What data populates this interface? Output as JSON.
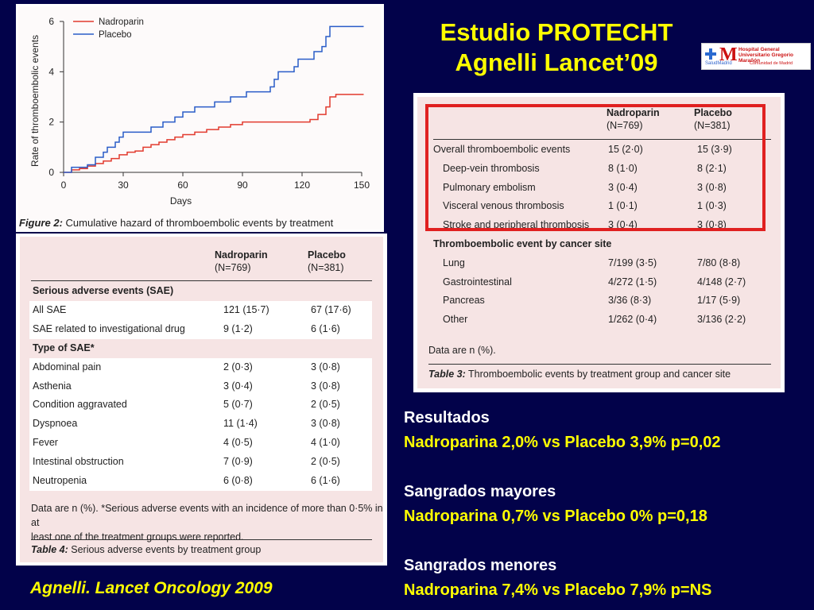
{
  "title": {
    "line1": "Estudio PROTECHT",
    "line2": "Agnelli Lancet’09"
  },
  "logo": {
    "letter": "M",
    "text_hospital": "Hospital General Universitario Gregorio Marañón",
    "text_salud": "SaludMadrid",
    "text_comunidad": "Comunidad de Madrid"
  },
  "chart_data": {
    "type": "line",
    "xlabel": "Days",
    "ylabel": "Rate of thromboembolic events",
    "xlim": [
      0,
      150
    ],
    "ylim": [
      0,
      6
    ],
    "xticks": [
      "0",
      "30",
      "60",
      "90",
      "120",
      "150"
    ],
    "yticks": [
      "0",
      "2",
      "4",
      "6"
    ],
    "legend_position": "top-left",
    "caption_bold": "Figure 2:",
    "caption_rest": " Cumulative hazard of thromboembolic events by treatment",
    "series": [
      {
        "name": "Nadroparin",
        "color": "#e23a2e",
        "points": [
          [
            0,
            0
          ],
          [
            4,
            0.1
          ],
          [
            8,
            0.15
          ],
          [
            12,
            0.25
          ],
          [
            16,
            0.35
          ],
          [
            20,
            0.45
          ],
          [
            24,
            0.55
          ],
          [
            28,
            0.7
          ],
          [
            32,
            0.8
          ],
          [
            36,
            0.85
          ],
          [
            40,
            1.0
          ],
          [
            44,
            1.1
          ],
          [
            48,
            1.2
          ],
          [
            52,
            1.3
          ],
          [
            56,
            1.4
          ],
          [
            60,
            1.5
          ],
          [
            66,
            1.6
          ],
          [
            72,
            1.7
          ],
          [
            78,
            1.8
          ],
          [
            84,
            1.9
          ],
          [
            90,
            2.0
          ],
          [
            120,
            2.0
          ],
          [
            124,
            2.1
          ],
          [
            128,
            2.3
          ],
          [
            132,
            2.6
          ],
          [
            134,
            3.0
          ],
          [
            137,
            3.1
          ],
          [
            151,
            3.1
          ]
        ]
      },
      {
        "name": "Placebo",
        "color": "#2a5cc8",
        "points": [
          [
            0,
            0
          ],
          [
            4,
            0.2
          ],
          [
            12,
            0.3
          ],
          [
            16,
            0.6
          ],
          [
            20,
            0.8
          ],
          [
            22,
            1.0
          ],
          [
            26,
            1.2
          ],
          [
            28,
            1.4
          ],
          [
            30,
            1.6
          ],
          [
            40,
            1.6
          ],
          [
            44,
            1.8
          ],
          [
            50,
            2.0
          ],
          [
            56,
            2.2
          ],
          [
            60,
            2.4
          ],
          [
            66,
            2.6
          ],
          [
            76,
            2.8
          ],
          [
            84,
            3.0
          ],
          [
            92,
            3.2
          ],
          [
            104,
            3.4
          ],
          [
            106,
            3.7
          ],
          [
            108,
            4.0
          ],
          [
            116,
            4.2
          ],
          [
            118,
            4.5
          ],
          [
            126,
            4.8
          ],
          [
            130,
            5.0
          ],
          [
            132,
            5.4
          ],
          [
            134,
            5.8
          ],
          [
            151,
            5.8
          ]
        ]
      }
    ]
  },
  "table3": {
    "col1": "Nadroparin",
    "col1n": "(N=769)",
    "col2": "Placebo",
    "col2n": "(N=381)",
    "rows": [
      {
        "label": "Overall thromboembolic events",
        "a": "15 (2·0)",
        "b": "15 (3·9)"
      },
      {
        "label": "Deep-vein thrombosis",
        "a": "8 (1·0)",
        "b": "8 (2·1)"
      },
      {
        "label": "Pulmonary embolism",
        "a": "3 (0·4)",
        "b": "3 (0·8)"
      },
      {
        "label": "Visceral venous thrombosis",
        "a": "1 (0·1)",
        "b": "1 (0·3)"
      },
      {
        "label": "Stroke and peripheral thrombosis",
        "a": "3 (0·4)",
        "b": "3 (0·8)"
      },
      {
        "label": "Thromboembolic event by cancer site",
        "a": "",
        "b": ""
      },
      {
        "label": "Lung",
        "a": "7/199 (3·5)",
        "b": "7/80 (8·8)"
      },
      {
        "label": "Gastrointestinal",
        "a": "4/272 (1·5)",
        "b": "4/148 (2·7)"
      },
      {
        "label": "Pancreas",
        "a": "3/36 (8·3)",
        "b": "1/17 (5·9)"
      },
      {
        "label": "Other",
        "a": "1/262 (0·4)",
        "b": "3/136 (2·2)"
      }
    ],
    "note": "Data are n (%).",
    "caption_bold": "Table 3:",
    "caption_rest": " Thromboembolic events by treatment group and cancer site",
    "highlight_color": "#e02020"
  },
  "table4": {
    "col1": "Nadroparin",
    "col1n": "(N=769)",
    "col2": "Placebo",
    "col2n": "(N=381)",
    "section1": "Serious adverse events (SAE)",
    "rows1": [
      {
        "label": "All SAE",
        "a": "121 (15·7)",
        "b": "67 (17·6)"
      },
      {
        "label": "SAE related to investigational drug",
        "a": "9 (1·2)",
        "b": "6 (1·6)"
      }
    ],
    "section2": "Type of SAE*",
    "rows2": [
      {
        "label": "Abdominal pain",
        "a": "2 (0·3)",
        "b": "3 (0·8)"
      },
      {
        "label": "Asthenia",
        "a": "3 (0·4)",
        "b": "3 (0·8)"
      },
      {
        "label": "Condition aggravated",
        "a": "5 (0·7)",
        "b": "2 (0·5)"
      },
      {
        "label": "Dyspnoea",
        "a": "11 (1·4)",
        "b": "3 (0·8)"
      },
      {
        "label": "Fever",
        "a": "4 (0·5)",
        "b": "4 (1·0)"
      },
      {
        "label": "Intestinal obstruction",
        "a": "7 (0·9)",
        "b": "2 (0·5)"
      },
      {
        "label": "Neutropenia",
        "a": "6 (0·8)",
        "b": "6 (1·6)"
      }
    ],
    "note1": "Data are n (%). *Serious adverse events with an incidence of more than 0·5% in at",
    "note2": "least one of the treatment groups were reported.",
    "caption_bold": "Table 4:",
    "caption_rest": " Serious adverse events by treatment group"
  },
  "results": {
    "h1": "Resultados",
    "l1": "Nadroparina 2,0% vs Placebo 3,9% p=0,02",
    "h2": "Sangrados mayores",
    "l2": "Nadroparina 0,7% vs Placebo 0% p=0,18",
    "h3": "Sangrados menores",
    "l3": "Nadroparina 7,4% vs Placebo 7,9% p=NS"
  },
  "citation": "Agnelli. Lancet Oncology 2009"
}
